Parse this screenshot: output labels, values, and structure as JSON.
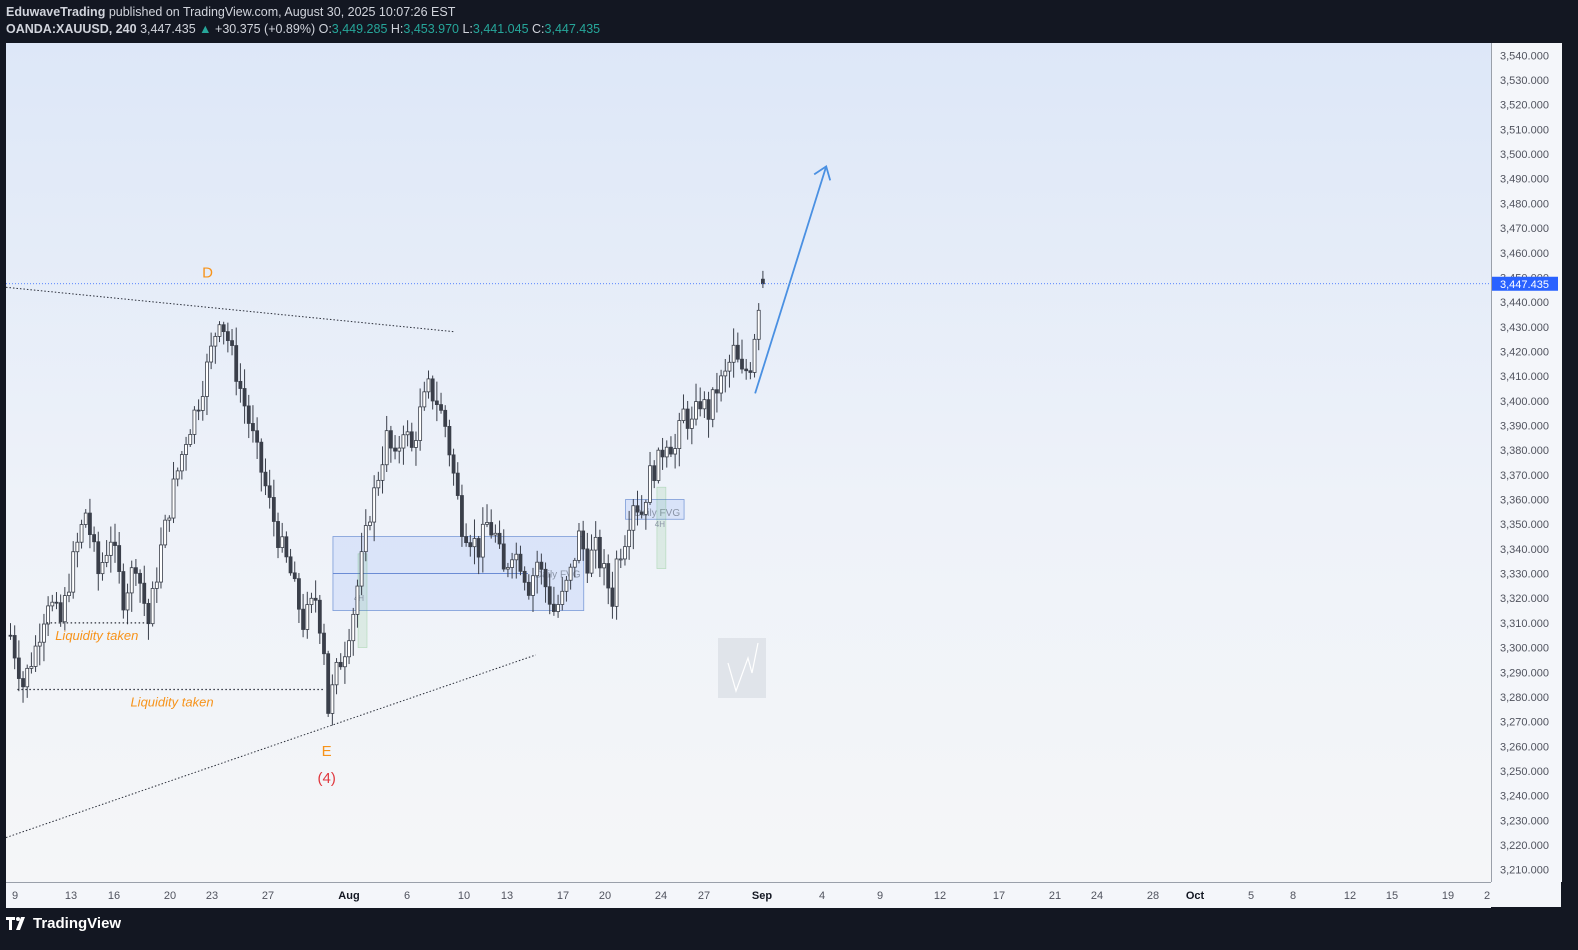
{
  "header": {
    "author": "EduwaveTrading",
    "published": "published on TradingView.com, August 30, 2025 10:07:26 EST",
    "symbol": "OANDA:XAUUSD, 240",
    "last": "3,447.435",
    "change": "+30.375 (+0.89%)",
    "o_label": "O:",
    "o_value": "3,449.285",
    "h_label": "H:",
    "h_value": "3,453.970",
    "l_label": "L:",
    "l_value": "3,441.045",
    "c_label": "C:",
    "c_value": "3,447.435"
  },
  "footer": {
    "brand": "TradingView"
  },
  "colors": {
    "bullish": "#26a69a",
    "candle": "#3a3f4a",
    "accent": "#2962ff",
    "annotation": "#f7931a",
    "wave_label": "#e0383e",
    "arrow": "#4a90e2"
  },
  "chart_data": {
    "type": "candlestick",
    "ylim": [
      3205,
      3545
    ],
    "y_ticks": [
      "3,210.000",
      "3,220.000",
      "3,230.000",
      "3,240.000",
      "3,250.000",
      "3,260.000",
      "3,270.000",
      "3,280.000",
      "3,290.000",
      "3,300.000",
      "3,310.000",
      "3,320.000",
      "3,330.000",
      "3,340.000",
      "3,350.000",
      "3,360.000",
      "3,370.000",
      "3,380.000",
      "3,390.000",
      "3,400.000",
      "3,410.000",
      "3,420.000",
      "3,430.000",
      "3,440.000",
      "3,450.000",
      "3,460.000",
      "3,470.000",
      "3,480.000",
      "3,490.000",
      "3,500.000",
      "3,510.000",
      "3,520.000",
      "3,530.000",
      "3,540.000"
    ],
    "x_ticks": [
      "9",
      "13",
      "16",
      "20",
      "23",
      "27",
      "Aug",
      "6",
      "10",
      "13",
      "17",
      "20",
      "24",
      "27",
      "Sep",
      "4",
      "9",
      "12",
      "17",
      "21",
      "24",
      "28",
      "Oct",
      "5",
      "8",
      "12",
      "15",
      "19",
      "2"
    ],
    "current_price": "3,447.435",
    "path": [
      [
        0,
        3305
      ],
      [
        3,
        3285
      ],
      [
        6,
        3300
      ],
      [
        9,
        3320
      ],
      [
        12,
        3310
      ],
      [
        15,
        3335
      ],
      [
        18,
        3355
      ],
      [
        21,
        3330
      ],
      [
        24,
        3345
      ],
      [
        27,
        3320
      ],
      [
        30,
        3335
      ],
      [
        33,
        3310
      ],
      [
        36,
        3340
      ],
      [
        39,
        3365
      ],
      [
        42,
        3385
      ],
      [
        45,
        3400
      ],
      [
        48,
        3420
      ],
      [
        50,
        3435
      ],
      [
        52,
        3425
      ],
      [
        55,
        3405
      ],
      [
        58,
        3385
      ],
      [
        61,
        3365
      ],
      [
        64,
        3345
      ],
      [
        67,
        3330
      ],
      [
        70,
        3310
      ],
      [
        73,
        3320
      ],
      [
        75,
        3300
      ],
      [
        76,
        3275
      ],
      [
        78,
        3290
      ],
      [
        80,
        3300
      ],
      [
        82,
        3315
      ],
      [
        84,
        3335
      ],
      [
        86,
        3355
      ],
      [
        88,
        3370
      ],
      [
        90,
        3385
      ],
      [
        92,
        3375
      ],
      [
        94,
        3390
      ],
      [
        96,
        3380
      ],
      [
        98,
        3395
      ],
      [
        100,
        3405
      ],
      [
        102,
        3400
      ],
      [
        104,
        3390
      ],
      [
        106,
        3370
      ],
      [
        108,
        3350
      ],
      [
        110,
        3345
      ],
      [
        112,
        3340
      ],
      [
        114,
        3350
      ],
      [
        116,
        3345
      ],
      [
        118,
        3330
      ],
      [
        120,
        3340
      ],
      [
        122,
        3335
      ],
      [
        124,
        3325
      ],
      [
        126,
        3335
      ],
      [
        128,
        3325
      ],
      [
        130,
        3315
      ],
      [
        132,
        3320
      ],
      [
        134,
        3330
      ],
      [
        136,
        3345
      ],
      [
        138,
        3335
      ],
      [
        140,
        3340
      ],
      [
        142,
        3330
      ],
      [
        144,
        3320
      ],
      [
        145,
        3335
      ],
      [
        147,
        3345
      ],
      [
        149,
        3360
      ],
      [
        151,
        3355
      ],
      [
        153,
        3370
      ],
      [
        155,
        3375
      ],
      [
        157,
        3385
      ],
      [
        159,
        3380
      ],
      [
        161,
        3395
      ],
      [
        163,
        3390
      ],
      [
        165,
        3400
      ],
      [
        167,
        3395
      ],
      [
        169,
        3405
      ],
      [
        171,
        3410
      ],
      [
        173,
        3420
      ],
      [
        175,
        3410
      ],
      [
        177,
        3415
      ],
      [
        179,
        3440
      ],
      [
        180,
        3447.435
      ]
    ],
    "bars_total": 180,
    "annotations": {
      "wave_d": "D",
      "wave_e": "E",
      "wave_4": "(4)",
      "liquidity_1": "Liquidity taken",
      "liquidity_2": "Liquidity taken",
      "fvg_1": "Daily FVG",
      "fvg_2": "Daily FVG",
      "fvg_1_range": [
        3315,
        3345
      ],
      "fvg_2_range": [
        3352,
        3360
      ],
      "fvg_1_midline": 3330,
      "fvg_2_midline": 3355,
      "liquidity_1_level": 3310,
      "liquidity_2_level": 3283,
      "tag_4h": "4H",
      "projection_target": 3495
    }
  }
}
